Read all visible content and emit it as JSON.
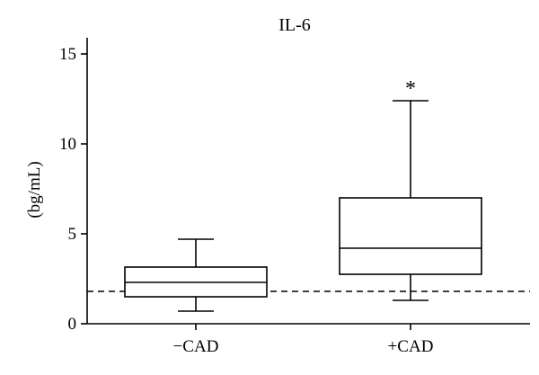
{
  "chart_data": {
    "type": "box",
    "title": "IL-6",
    "xlabel": "",
    "ylabel": "(bg/mL)",
    "ylim": [
      0,
      16
    ],
    "yticks": [
      0,
      5,
      10,
      15
    ],
    "categories": [
      "−CAD",
      "+CAD"
    ],
    "boxes": [
      {
        "category": "−CAD",
        "min": 0.7,
        "q1": 1.5,
        "median": 2.3,
        "q3": 3.15,
        "max": 4.7,
        "annotation": ""
      },
      {
        "category": "+CAD",
        "min": 1.3,
        "q1": 2.75,
        "median": 4.2,
        "q3": 7.0,
        "max": 12.4,
        "annotation": "*"
      }
    ],
    "reference_line": {
      "y": 1.8,
      "style": "dashed"
    },
    "grid": false,
    "colors": {
      "stroke": "#000000",
      "background": "#ffffff"
    }
  }
}
